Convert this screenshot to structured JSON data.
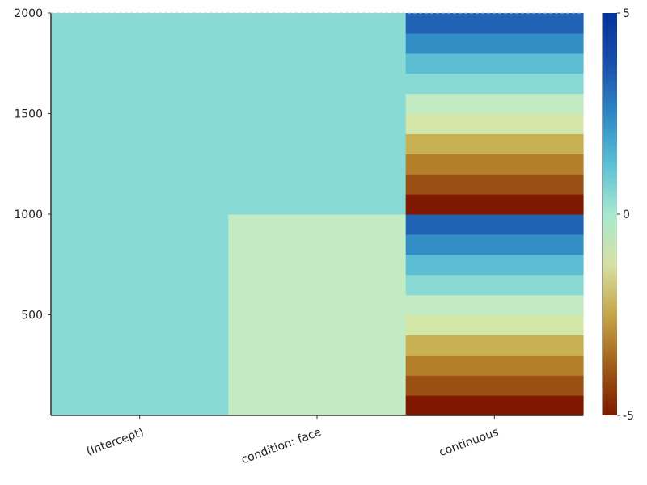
{
  "chart_data": {
    "type": "heatmap",
    "title": "",
    "xlabel": "",
    "ylabel": "",
    "columns": [
      "(Intercept)",
      "condition: face",
      "continuous"
    ],
    "ylim": [
      0,
      2000
    ],
    "y_ticks": [
      500,
      1000,
      1500,
      2000
    ],
    "y_tick_labels": [
      "500",
      "1000",
      "1500",
      "2000"
    ],
    "rows": 2000,
    "column_values": [
      {
        "column": "(Intercept)",
        "segments": [
          {
            "from": 0,
            "to": 2000,
            "value": 1
          }
        ]
      },
      {
        "column": "condition: face",
        "segments": [
          {
            "from": 0,
            "to": 1000,
            "value": 0
          },
          {
            "from": 1000,
            "to": 2000,
            "value": 1
          }
        ]
      },
      {
        "column": "continuous",
        "segments": [
          {
            "from": 0,
            "to": 100,
            "value": -5
          },
          {
            "from": 100,
            "to": 200,
            "value": -4
          },
          {
            "from": 200,
            "to": 300,
            "value": -3
          },
          {
            "from": 300,
            "to": 400,
            "value": -2
          },
          {
            "from": 400,
            "to": 500,
            "value": -1
          },
          {
            "from": 500,
            "to": 600,
            "value": 0
          },
          {
            "from": 600,
            "to": 700,
            "value": 1
          },
          {
            "from": 700,
            "to": 800,
            "value": 2
          },
          {
            "from": 800,
            "to": 900,
            "value": 3
          },
          {
            "from": 900,
            "to": 1000,
            "value": 4
          },
          {
            "from": 1000,
            "to": 1100,
            "value": -5
          },
          {
            "from": 1100,
            "to": 1200,
            "value": -4
          },
          {
            "from": 1200,
            "to": 1300,
            "value": -3
          },
          {
            "from": 1300,
            "to": 1400,
            "value": -2
          },
          {
            "from": 1400,
            "to": 1500,
            "value": -1
          },
          {
            "from": 1500,
            "to": 1600,
            "value": 0
          },
          {
            "from": 1600,
            "to": 1700,
            "value": 1
          },
          {
            "from": 1700,
            "to": 1800,
            "value": 2
          },
          {
            "from": 1800,
            "to": 1900,
            "value": 3
          },
          {
            "from": 1900,
            "to": 2000,
            "value": 4
          }
        ]
      }
    ],
    "colorbar": {
      "range": [
        -5,
        5
      ],
      "ticks": [
        -5,
        0,
        5
      ],
      "tick_labels": [
        "-5",
        "0",
        "5"
      ],
      "colormap": "roma",
      "colors": {
        "-5": "#7e1900",
        "-4": "#9a4f13",
        "-3": "#b37f28",
        "-2": "#c8b153",
        "-1": "#d5e6a9",
        "0": "#c2eac3",
        "1": "#89d9d5",
        "2": "#5bbed3",
        "3": "#318fc6",
        "4": "#2063b5",
        "5": "#03349a"
      },
      "gradient_stops": [
        "#7e1900",
        "#a15e18",
        "#c5a549",
        "#d6e0a3",
        "#a8e8cf",
        "#5bbfd6",
        "#2d87c4",
        "#1a4fab",
        "#03349a"
      ]
    },
    "grid": false,
    "legend": "colorbar-right"
  }
}
